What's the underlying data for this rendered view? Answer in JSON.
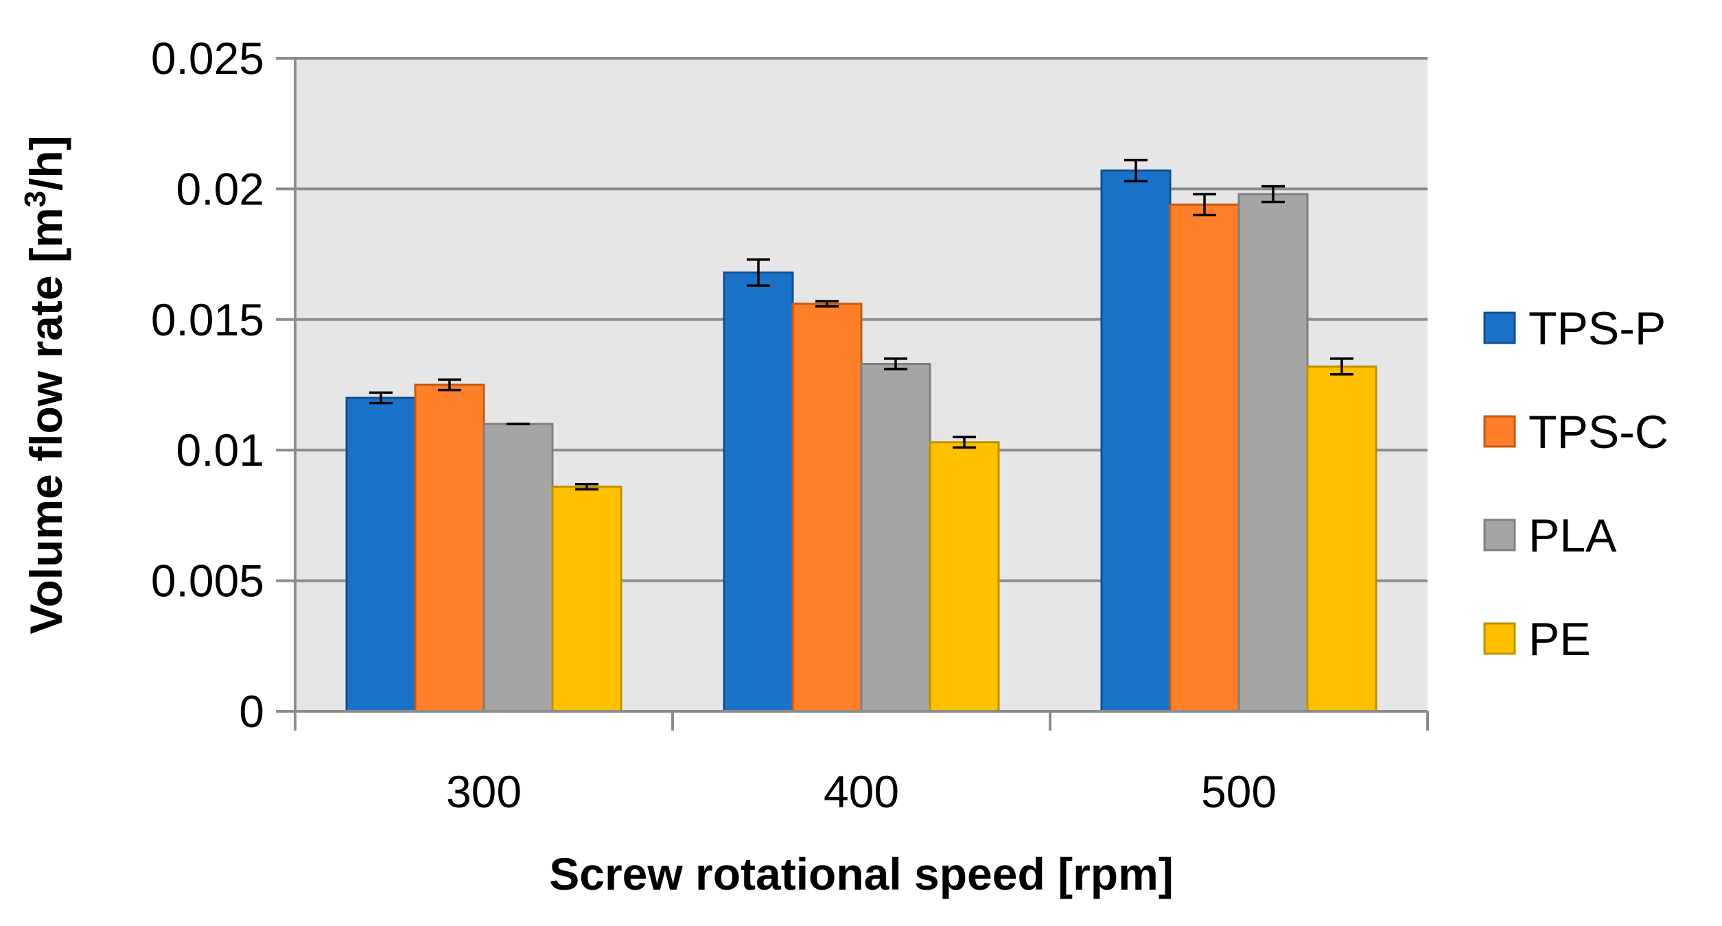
{
  "chart_data": {
    "type": "bar",
    "title": "",
    "xlabel": "Screw rotational speed [rpm]",
    "ylabel_prefix": "Volume flow rate [m",
    "ylabel_sup": "3",
    "ylabel_suffix": "/h]",
    "categories": [
      "300",
      "400",
      "500"
    ],
    "ylim": [
      0,
      0.025
    ],
    "yticks": [
      0,
      0.005,
      0.01,
      0.015,
      0.02,
      0.025
    ],
    "ytick_labels": [
      "0",
      "0.005",
      "0.01",
      "0.015",
      "0.02",
      "0.025"
    ],
    "grid": true,
    "legend_position": "right",
    "series": [
      {
        "name": "TPS-P",
        "color": "#1B72C9",
        "edge": "#0F4F8F",
        "values": [
          0.012,
          0.0168,
          0.0207
        ],
        "errors": [
          0.0002,
          0.0005,
          0.0004
        ]
      },
      {
        "name": "TPS-C",
        "color": "#FF7F2A",
        "edge": "#C55A11",
        "values": [
          0.0125,
          0.0156,
          0.0194
        ],
        "errors": [
          0.0002,
          0.0001,
          0.0004
        ]
      },
      {
        "name": "PLA",
        "color": "#A5A5A5",
        "edge": "#7F7F7F",
        "values": [
          0.011,
          0.0133,
          0.0198
        ],
        "errors": [
          0.0,
          0.0002,
          0.0003
        ]
      },
      {
        "name": "PE",
        "color": "#FFC000",
        "edge": "#BF9000",
        "values": [
          0.0086,
          0.0103,
          0.0132
        ],
        "errors": [
          0.0001,
          0.0002,
          0.0003
        ]
      }
    ]
  }
}
